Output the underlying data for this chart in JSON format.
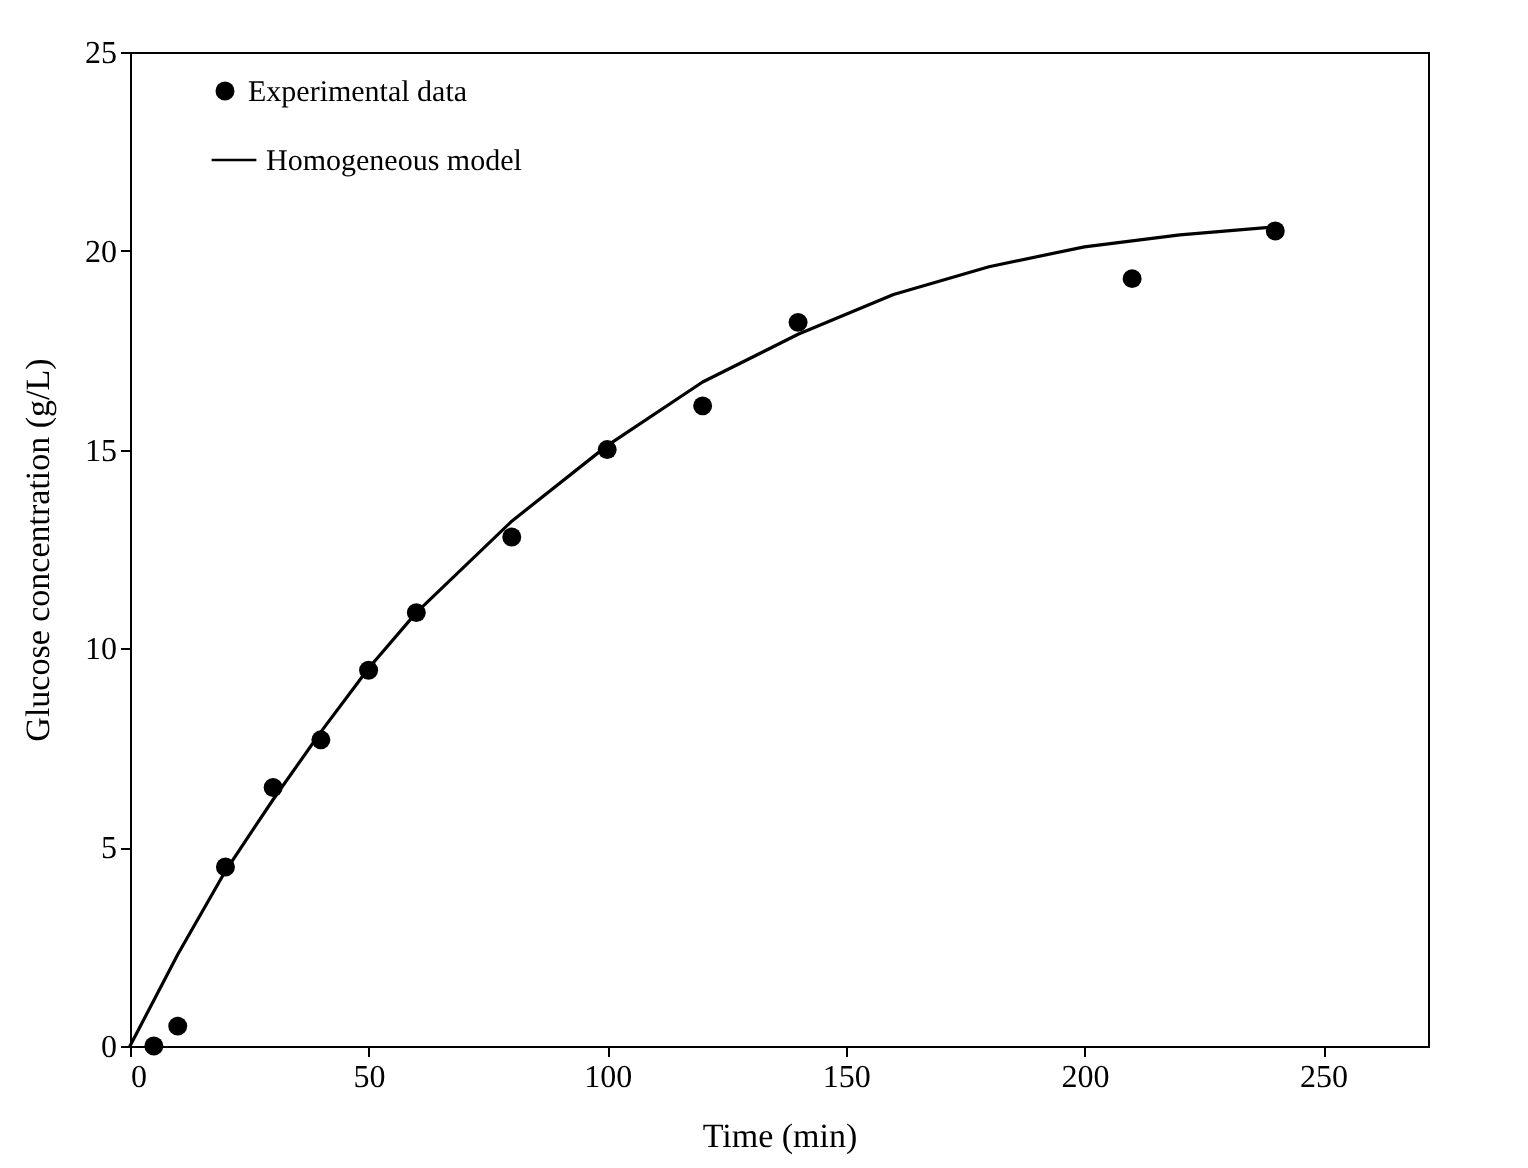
{
  "chart_data": {
    "type": "scatter",
    "xlabel": "Time (min)",
    "ylabel": "Glucose concentration (g/L)",
    "xlim": [
      0,
      272
    ],
    "xticks": [
      0,
      50,
      100,
      150,
      200,
      250
    ],
    "ylim": [
      0,
      25
    ],
    "yticks": [
      0,
      5,
      10,
      15,
      20,
      25
    ],
    "grid": false,
    "legend": "top left",
    "series": [
      {
        "name": "Experimental data",
        "type": "scatter",
        "marker": "circle",
        "color": "#000000",
        "x": [
          5,
          10,
          20,
          30,
          40,
          50,
          60,
          80,
          100,
          120,
          140,
          210,
          240
        ],
        "values": [
          0,
          0.5,
          4.5,
          6.5,
          7.7,
          9.45,
          10.9,
          12.8,
          15.0,
          16.1,
          18.2,
          19.3,
          20.5
        ]
      },
      {
        "name": "Homogeneous model",
        "type": "line",
        "line_style": "solid",
        "color": "#000000",
        "x": [
          0,
          10,
          20,
          30,
          40,
          50,
          60,
          80,
          100,
          120,
          140,
          160,
          180,
          200,
          220,
          240
        ],
        "values": [
          0,
          2.3,
          4.4,
          6.2,
          7.9,
          9.5,
          10.9,
          13.2,
          15.1,
          16.7,
          17.9,
          18.9,
          19.6,
          20.1,
          20.4,
          20.6
        ]
      }
    ]
  }
}
